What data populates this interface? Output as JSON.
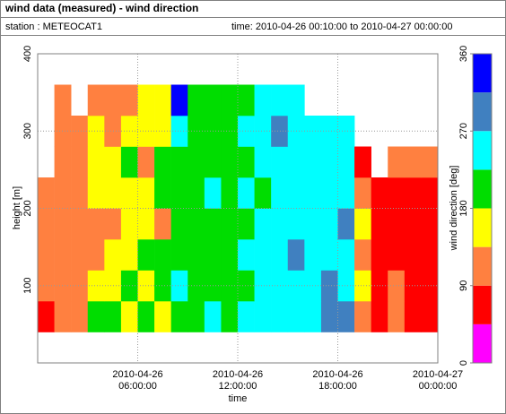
{
  "chart_data": {
    "type": "heatmap",
    "title": "wind data (measured) - wind direction",
    "station": "station : METEOCAT1",
    "time_range": "time: 2010-04-26 00:10:00 to 2010-04-27 00:00:00",
    "xlabel": "time",
    "ylabel": "height [m]",
    "colorbar_label": "wind direction [deg]",
    "xlim": [
      "2010-04-26 00:00:00",
      "2010-04-27 00:00:00"
    ],
    "xticks": [
      {
        "value": "2010-04-26 06:00:00",
        "label": "2010-04-26\n06:00:00"
      },
      {
        "value": "2010-04-26 12:00:00",
        "label": "2010-04-26\n12:00:00"
      },
      {
        "value": "2010-04-26 18:00:00",
        "label": "2010-04-26\n18:00:00"
      },
      {
        "value": "2010-04-27 00:00:00",
        "label": "2010-04-27\n00:00:00"
      }
    ],
    "ylim": [
      0,
      400
    ],
    "yticks": [
      100,
      200,
      300,
      400
    ],
    "grid": true,
    "x_edges": [
      "2010-04-26 00:00:00",
      "2010-04-26 01:00:00",
      "2010-04-26 02:00:00",
      "2010-04-26 03:00:00",
      "2010-04-26 04:00:00",
      "2010-04-26 05:00:00",
      "2010-04-26 06:00:00",
      "2010-04-26 07:00:00",
      "2010-04-26 08:00:00",
      "2010-04-26 09:00:00",
      "2010-04-26 10:00:00",
      "2010-04-26 11:00:00",
      "2010-04-26 12:00:00",
      "2010-04-26 13:00:00",
      "2010-04-26 14:00:00",
      "2010-04-26 15:00:00",
      "2010-04-26 16:00:00",
      "2010-04-26 17:00:00",
      "2010-04-26 18:00:00",
      "2010-04-26 19:00:00",
      "2010-04-26 20:00:00",
      "2010-04-26 21:00:00",
      "2010-04-26 22:00:00",
      "2010-04-26 23:00:00",
      "2010-04-27 00:00:00"
    ],
    "y_edges": [
      40,
      80,
      120,
      160,
      200,
      240,
      280,
      320,
      360
    ],
    "z": [
      [
        70,
        110,
        110,
        200,
        200,
        160,
        200,
        160,
        200,
        200,
        250,
        200,
        250,
        250,
        250,
        250,
        250,
        290,
        290,
        110,
        70,
        110,
        70,
        70
      ],
      [
        110,
        110,
        110,
        160,
        160,
        200,
        160,
        200,
        250,
        200,
        200,
        200,
        200,
        250,
        250,
        250,
        250,
        290,
        250,
        160,
        70,
        110,
        70,
        70
      ],
      [
        110,
        110,
        110,
        110,
        160,
        160,
        200,
        200,
        200,
        200,
        200,
        200,
        250,
        250,
        250,
        290,
        250,
        250,
        250,
        110,
        70,
        70,
        70,
        70
      ],
      [
        110,
        110,
        110,
        110,
        110,
        160,
        160,
        110,
        200,
        200,
        200,
        200,
        200,
        250,
        250,
        250,
        250,
        250,
        290,
        160,
        70,
        70,
        70,
        70
      ],
      [
        110,
        110,
        110,
        160,
        160,
        160,
        160,
        200,
        200,
        200,
        250,
        200,
        250,
        200,
        250,
        250,
        250,
        250,
        250,
        110,
        70,
        70,
        70,
        70
      ],
      [
        null,
        110,
        110,
        160,
        160,
        200,
        110,
        200,
        200,
        200,
        200,
        200,
        200,
        250,
        250,
        250,
        250,
        250,
        250,
        70,
        null,
        110,
        110,
        110
      ],
      [
        null,
        110,
        110,
        160,
        110,
        160,
        160,
        160,
        250,
        200,
        200,
        200,
        250,
        250,
        290,
        250,
        250,
        250,
        250,
        null,
        null,
        null,
        null,
        null
      ],
      [
        null,
        110,
        null,
        110,
        110,
        110,
        160,
        160,
        330,
        200,
        200,
        200,
        200,
        250,
        250,
        250,
        null,
        null,
        null,
        null,
        null,
        null,
        null,
        null
      ]
    ],
    "zlim": [
      0,
      360
    ],
    "zticks": [
      0,
      90,
      180,
      270,
      360
    ],
    "colors": [
      "#ff00ff",
      "#ff0000",
      "#ff8040",
      "#ffff00",
      "#00dd00",
      "#00ffff",
      "#4080c0",
      "#0000ff"
    ]
  }
}
